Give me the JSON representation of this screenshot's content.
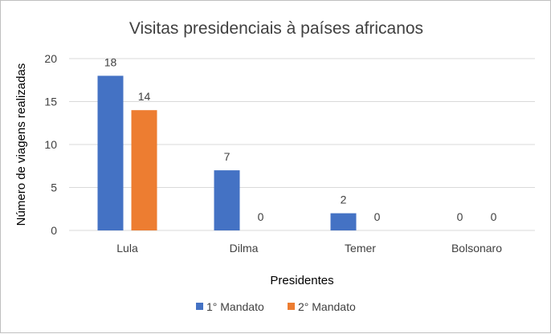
{
  "chart_data": {
    "type": "bar",
    "title": "Visitas presidenciais à países africanos",
    "xlabel": "Presidentes",
    "ylabel": "Número de viagens realizadas",
    "categories": [
      "Lula",
      "Dilma",
      "Temer",
      "Bolsonaro"
    ],
    "series": [
      {
        "name": "1° Mandato",
        "values": [
          18,
          7,
          2,
          0
        ],
        "color": "#4472c4"
      },
      {
        "name": "2° Mandato",
        "values": [
          14,
          0,
          0,
          0
        ],
        "color": "#ed7d31"
      }
    ],
    "ylim": [
      0,
      20
    ],
    "yticks": [
      "0",
      "5",
      "10",
      "15",
      "20"
    ],
    "grid": true,
    "legend_position": "bottom"
  }
}
